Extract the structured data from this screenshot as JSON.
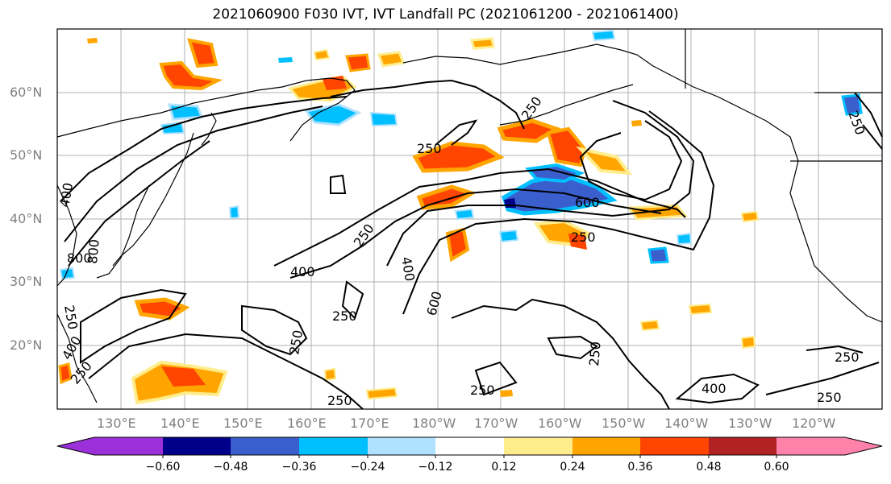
{
  "title": "2021060900 F030 IVT, IVT Landfall PC (2021061200 - 2021061400)",
  "lat_labels": [
    "60°N",
    "50°N",
    "40°N",
    "30°N",
    "20°N"
  ],
  "lon_labels": [
    "130°E",
    "140°E",
    "150°E",
    "160°E",
    "170°E",
    "180°W",
    "170°W",
    "160°W",
    "150°W",
    "140°W",
    "130°W",
    "120°W"
  ],
  "contour_labels": [
    "250",
    "250",
    "250",
    "600",
    "250",
    "250",
    "400",
    "400",
    "600",
    "250",
    "250",
    "400",
    "800",
    "800",
    "250",
    "400",
    "250",
    "250",
    "250",
    "250",
    "250",
    "400",
    "250"
  ],
  "colorbar": {
    "ticks": [
      "−0.60",
      "−0.48",
      "−0.36",
      "−0.24",
      "−0.12",
      "0.12",
      "0.24",
      "0.36",
      "0.48",
      "0.60"
    ],
    "colors": [
      "#9b30d9",
      "#00008b",
      "#3a5fcd",
      "#00bfff",
      "#b0e2ff",
      "#ffffff",
      "#ffec8b",
      "#ffa500",
      "#ff4500",
      "#b22222",
      "#ff82ab"
    ]
  }
}
